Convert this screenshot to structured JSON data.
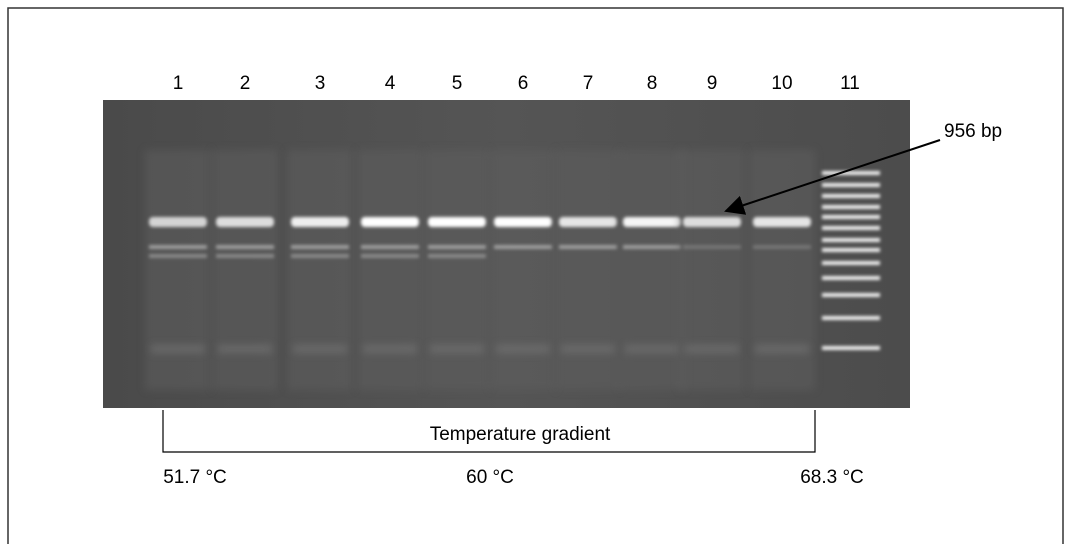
{
  "lanes": [
    "1",
    "2",
    "3",
    "4",
    "5",
    "6",
    "7",
    "8",
    "9",
    "10",
    "11"
  ],
  "band_label": "956 bp",
  "gradient": {
    "label": "Temperature gradient",
    "start": "51.7 °C",
    "middle": "60 °C",
    "end": "68.3 °C"
  }
}
